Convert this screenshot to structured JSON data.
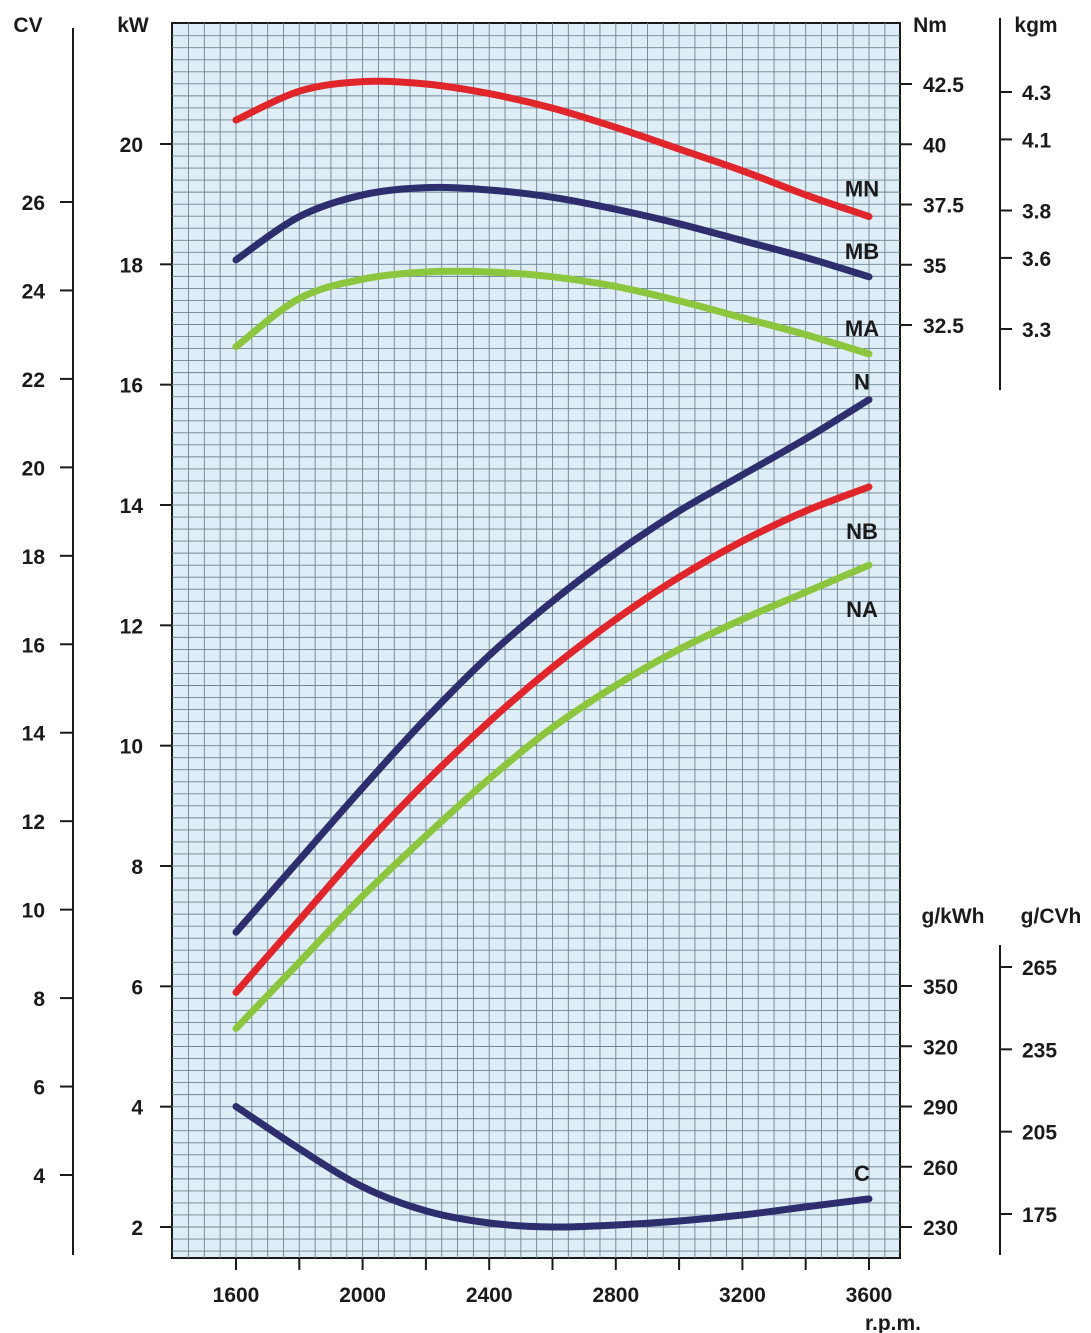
{
  "chart_data": {
    "type": "line",
    "xlabel": "r.p.m.",
    "x_ticks": [
      1600,
      2000,
      2400,
      2800,
      3200,
      3600
    ],
    "xlim": [
      1400,
      3700
    ],
    "axes": {
      "kW": {
        "label": "kW",
        "ticks": [
          2,
          4,
          6,
          8,
          10,
          12,
          14,
          16,
          18,
          20
        ],
        "range": [
          1.1,
          23.0
        ]
      },
      "CV": {
        "label": "CV",
        "ticks": [
          4,
          6,
          8,
          10,
          12,
          14,
          16,
          18,
          20,
          22,
          24,
          26
        ]
      },
      "Nm": {
        "label": "Nm",
        "ticks": [
          32.5,
          35,
          37.5,
          40,
          42.5
        ]
      },
      "kgm": {
        "label": "kgm",
        "ticks": [
          3.3,
          3.6,
          3.8,
          4.1,
          4.3
        ]
      },
      "g_kWh": {
        "label": "g/kWh",
        "ticks": [
          230,
          260,
          290,
          320,
          350
        ]
      },
      "g_CVh": {
        "label": "g/CVh",
        "ticks": [
          175,
          205,
          235,
          265
        ]
      }
    },
    "grid": true,
    "series": [
      {
        "name": "MN",
        "axis": "Nm",
        "color": "#e0252b",
        "x": [
          1600,
          1800,
          2000,
          2200,
          2400,
          2600,
          2800,
          3000,
          3200,
          3400,
          3600
        ],
        "y": [
          41.0,
          42.2,
          42.6,
          42.5,
          42.1,
          41.5,
          40.7,
          39.8,
          38.9,
          37.9,
          37.0
        ]
      },
      {
        "name": "MB",
        "axis": "Nm",
        "color": "#2e2e6e",
        "x": [
          1600,
          1800,
          2000,
          2200,
          2400,
          2600,
          2800,
          3000,
          3200,
          3400,
          3600
        ],
        "y": [
          35.2,
          37.0,
          37.9,
          38.2,
          38.1,
          37.8,
          37.3,
          36.7,
          36.0,
          35.3,
          34.5
        ]
      },
      {
        "name": "MA",
        "axis": "Nm",
        "color": "#8cc63f",
        "x": [
          1600,
          1800,
          2000,
          2200,
          2400,
          2600,
          2800,
          3000,
          3200,
          3400,
          3600
        ],
        "y": [
          31.6,
          33.6,
          34.4,
          34.7,
          34.7,
          34.5,
          34.1,
          33.5,
          32.8,
          32.1,
          31.3
        ]
      },
      {
        "name": "N",
        "axis": "kW",
        "color": "#2e2e6e",
        "x": [
          1600,
          1800,
          2000,
          2200,
          2400,
          2600,
          2800,
          3000,
          3200,
          3400,
          3600
        ],
        "y": [
          6.9,
          8.1,
          9.3,
          10.45,
          11.5,
          12.4,
          13.2,
          13.9,
          14.5,
          15.1,
          15.75
        ]
      },
      {
        "name": "NB",
        "axis": "kW",
        "color": "#e0252b",
        "x": [
          1600,
          1800,
          2000,
          2200,
          2400,
          2600,
          2800,
          3000,
          3200,
          3400,
          3600
        ],
        "y": [
          5.9,
          7.1,
          8.3,
          9.4,
          10.4,
          11.3,
          12.1,
          12.8,
          13.4,
          13.9,
          14.3
        ]
      },
      {
        "name": "NA",
        "axis": "kW",
        "color": "#8cc63f",
        "x": [
          1600,
          1800,
          2000,
          2200,
          2400,
          2600,
          2800,
          3000,
          3200,
          3400,
          3600
        ],
        "y": [
          5.3,
          6.4,
          7.5,
          8.5,
          9.45,
          10.3,
          11.0,
          11.6,
          12.1,
          12.55,
          13.0
        ]
      },
      {
        "name": "C",
        "axis": "g_kWh",
        "color": "#2e2e6e",
        "x": [
          1600,
          1800,
          2000,
          2200,
          2400,
          2600,
          2800,
          3000,
          3200,
          3400,
          3600
        ],
        "y": [
          290,
          269,
          250,
          238,
          232,
          230,
          231,
          233,
          236,
          240,
          244
        ]
      }
    ]
  }
}
